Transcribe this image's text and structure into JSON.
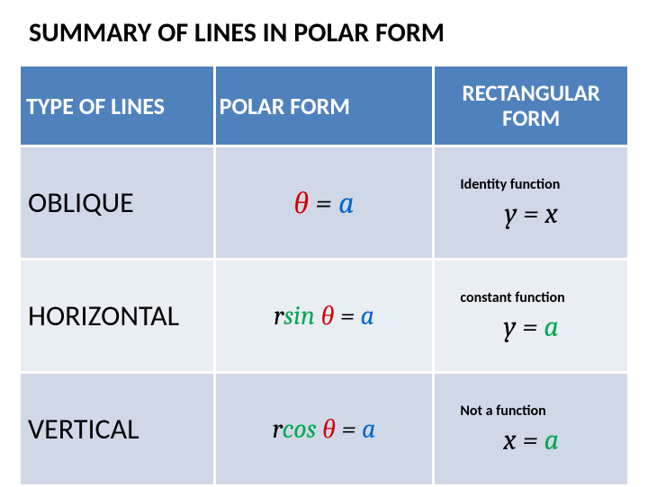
{
  "title": "SUMMARY OF LINES IN POLAR FORM",
  "headers": {
    "col1": "TYPE OF LINES",
    "col2": "POLAR FORM",
    "col3": "RECTANGULAR FORM"
  },
  "rows": [
    {
      "type": "OBLIQUE",
      "polar": {
        "parts": [
          {
            "text": "θ",
            "color": "red"
          },
          {
            "text": " = ",
            "color": "black"
          },
          {
            "text": "a",
            "color": "blue"
          }
        ]
      },
      "note": "Identity function",
      "rect": {
        "parts": [
          {
            "text": "y",
            "color": "black"
          },
          {
            "text": " = ",
            "color": "black"
          },
          {
            "text": "x",
            "color": "black"
          }
        ]
      }
    },
    {
      "type": "HORIZONTAL",
      "polar": {
        "parts": [
          {
            "text": "r",
            "color": "black"
          },
          {
            "text": "sin",
            "color": "green"
          },
          {
            "text": " θ",
            "color": "red"
          },
          {
            "text": " = ",
            "color": "black"
          },
          {
            "text": "a",
            "color": "blue"
          }
        ]
      },
      "note": "constant function",
      "rect": {
        "parts": [
          {
            "text": "y",
            "color": "black"
          },
          {
            "text": " = ",
            "color": "black"
          },
          {
            "text": "a",
            "color": "green"
          }
        ]
      }
    },
    {
      "type": "VERTICAL",
      "polar": {
        "parts": [
          {
            "text": "r",
            "color": "black"
          },
          {
            "text": "cos",
            "color": "green"
          },
          {
            "text": " θ",
            "color": "red"
          },
          {
            "text": " = ",
            "color": "black"
          },
          {
            "text": "a",
            "color": "blue"
          }
        ]
      },
      "note": "Not a function",
      "rect": {
        "parts": [
          {
            "text": "x",
            "color": "black"
          },
          {
            "text": " = ",
            "color": "black"
          },
          {
            "text": "a",
            "color": "green"
          }
        ]
      }
    }
  ],
  "colors": {
    "header_bg": "#4f81bd",
    "row_odd_bg": "#d0d8e8",
    "row_even_bg": "#e9edf4",
    "black": "#000000",
    "red": "#d00000",
    "blue": "#0066cc",
    "green": "#00a84f"
  }
}
